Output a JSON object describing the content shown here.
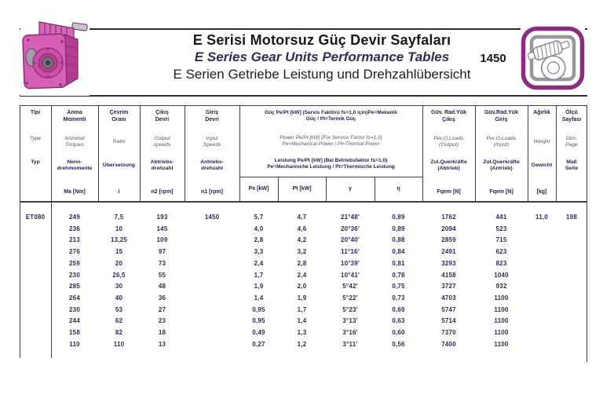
{
  "header": {
    "title_tr": "E Serisi Motorsuz Güç Devir Sayfaları",
    "title_en": "E Series Gear Units Performance Tables",
    "title_de": "E Serien Getriebe Leistung und Drehzahlübersicht",
    "page_code": "1450"
  },
  "colors": {
    "accent_magenta": "#8d2b7f",
    "gearbox_pink": "#d75fb4",
    "ink": "#23234e"
  },
  "icons": {
    "left": "gearbox-photo",
    "right": "worm-gear-icon"
  },
  "table": {
    "columns": [
      {
        "tr": "Tipi",
        "en": "Type",
        "de": "Typ",
        "unit": ""
      },
      {
        "tr": "Anma\nMomenti",
        "en": "Nominal\nTorques",
        "de": "Nenn-\ndrehmomente",
        "unit": "Ma [Nm]"
      },
      {
        "tr": "Çevrim\nOranı",
        "en": "Ratio",
        "de": "Übersetzung",
        "unit": "i"
      },
      {
        "tr": "Çıkış\nDevri",
        "en": "Output\nspeeds",
        "de": "Abtriebs-\ndrehzahl",
        "unit": "n2 [rpm]"
      },
      {
        "tr": "Giriş\nDevri",
        "en": "Input\nSpeeds",
        "de": "Antriebs-\ndrehzahl",
        "unit": "n1 [rpm]"
      }
    ],
    "power_group": {
      "tr": "Güç Pe/Pt [kW] (Servis Faktörü  fs=1,0 için)Pe=Mekanik\nGüç / Pt=Termik Güç",
      "en": "Power Pe/Pt [kW] (For Service Factor fs=1,0)\nPe=Mechanical Power / Pt=Thermal Power",
      "de": "Leistung Pe/Pt [kW] (Bei Betriebsfaktor fs=1,0)\nPe=Mechanische Leistung / Pt=Thermische Leistung",
      "units": {
        "pe": "Pe [kW]",
        "pt": "Pt [kW]",
        "gamma": "γ",
        "eta": "η"
      }
    },
    "right_columns": [
      {
        "tr": "Güv. Rad.Yük\nÇıkış",
        "en": "Per.O.Loads\n(Output)",
        "de": "Zul.Querkräfte\n(Abtrieb)",
        "unit": "Fqem [N]"
      },
      {
        "tr": "Güv.Rad.Yük\nGiriş",
        "en": "Per.O.Loads\n(Input)",
        "de": "Zul.Querkräfte\n(Antrieb)",
        "unit": "Fqem [N]"
      },
      {
        "tr": "Ağırlık",
        "en": "Weight",
        "de": "Gewicht",
        "unit": "[kg]"
      },
      {
        "tr": "Ölçü\nSayfası",
        "en": "Dim.\nPage",
        "de": "Maß\nSeite",
        "unit": ""
      }
    ],
    "rows": [
      {
        "tipi": "ET080",
        "ma": "249",
        "i": "7,5",
        "n2": "193",
        "n1": "1450",
        "pe": "5,7",
        "pt": "4,7",
        "gamma": "21°48'",
        "eta": "0,89",
        "fq_out": "1762",
        "fq_in": "441",
        "wt": "11,0",
        "page": "198"
      },
      {
        "tipi": "",
        "ma": "236",
        "i": "10",
        "n2": "145",
        "n1": "",
        "pe": "4,0",
        "pt": "4,6",
        "gamma": "20°36'",
        "eta": "0,89",
        "fq_out": "2094",
        "fq_in": "523",
        "wt": "",
        "page": ""
      },
      {
        "tipi": "",
        "ma": "213",
        "i": "13,25",
        "n2": "109",
        "n1": "",
        "pe": "2,8",
        "pt": "4,2",
        "gamma": "20°40'",
        "eta": "0,88",
        "fq_out": "2859",
        "fq_in": "715",
        "wt": "",
        "page": ""
      },
      {
        "tipi": "",
        "ma": "276",
        "i": "15",
        "n2": "97",
        "n1": "",
        "pe": "3,3",
        "pt": "3,2",
        "gamma": "11°16'",
        "eta": "0,84",
        "fq_out": "2491",
        "fq_in": "623",
        "wt": "",
        "page": ""
      },
      {
        "tipi": "",
        "ma": "259",
        "i": "20",
        "n2": "73",
        "n1": "",
        "pe": "2,4",
        "pt": "2,8",
        "gamma": "10°39'",
        "eta": "0,81",
        "fq_out": "3293",
        "fq_in": "823",
        "wt": "",
        "page": ""
      },
      {
        "tipi": "",
        "ma": "230",
        "i": "26,5",
        "n2": "55",
        "n1": "",
        "pe": "1,7",
        "pt": "2,4",
        "gamma": "10°41'",
        "eta": "0,78",
        "fq_out": "4158",
        "fq_in": "1040",
        "wt": "",
        "page": ""
      },
      {
        "tipi": "",
        "ma": "285",
        "i": "30",
        "n2": "48",
        "n1": "",
        "pe": "1,9",
        "pt": "2,0",
        "gamma": "5°42'",
        "eta": "0,75",
        "fq_out": "3727",
        "fq_in": "932",
        "wt": "",
        "page": ""
      },
      {
        "tipi": "",
        "ma": "264",
        "i": "40",
        "n2": "36",
        "n1": "",
        "pe": "1,4",
        "pt": "1,9",
        "gamma": "5°22'",
        "eta": "0,73",
        "fq_out": "4703",
        "fq_in": "1100",
        "wt": "",
        "page": ""
      },
      {
        "tipi": "",
        "ma": "230",
        "i": "53",
        "n2": "27",
        "n1": "",
        "pe": "0,95",
        "pt": "1,7",
        "gamma": "5°23'",
        "eta": "0,69",
        "fq_out": "5747",
        "fq_in": "1100",
        "wt": "",
        "page": ""
      },
      {
        "tipi": "",
        "ma": "244",
        "i": "62",
        "n2": "23",
        "n1": "",
        "pe": "0,95",
        "pt": "1,4",
        "gamma": "3°13'",
        "eta": "0,63",
        "fq_out": "5714",
        "fq_in": "1100",
        "wt": "",
        "page": ""
      },
      {
        "tipi": "",
        "ma": "158",
        "i": "82",
        "n2": "18",
        "n1": "",
        "pe": "0,49",
        "pt": "1,3",
        "gamma": "3°16'",
        "eta": "0,60",
        "fq_out": "7370",
        "fq_in": "1100",
        "wt": "",
        "page": ""
      },
      {
        "tipi": "",
        "ma": "110",
        "i": "110",
        "n2": "13",
        "n1": "",
        "pe": "0,27",
        "pt": "1,2",
        "gamma": "3°11'",
        "eta": "0,56",
        "fq_out": "7400",
        "fq_in": "1100",
        "wt": "",
        "page": ""
      }
    ]
  }
}
